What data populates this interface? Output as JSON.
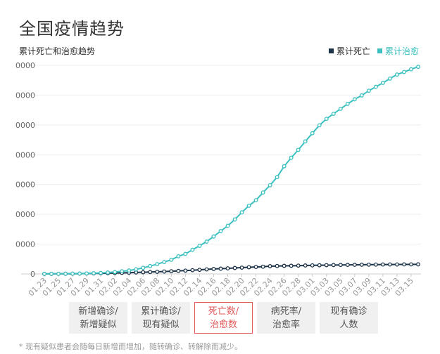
{
  "page": {
    "title": "全国疫情趋势"
  },
  "footnote": "* 现有疑似患者会随每日新增而增加，随转确诊、转解除而减少。",
  "buttons": [
    {
      "label": "新增确诊/\n新增疑似",
      "active": false
    },
    {
      "label": "累计确诊/\n现有疑似",
      "active": false
    },
    {
      "label": "死亡数/\n治愈数",
      "active": true
    },
    {
      "label": "病死率/\n治愈率",
      "active": false
    },
    {
      "label": "现有确诊\n人数",
      "active": false
    }
  ],
  "colors": {
    "deaths": "#1d3347",
    "cured": "#3cc0c0",
    "grid": "#eeeeee",
    "axis": "#cccccc",
    "tick_text": "#999999"
  },
  "chart_data": {
    "type": "line",
    "title": "累计死亡和治愈趋势",
    "legend_position": "top-right",
    "grid": true,
    "ytick_labels": [
      "0",
      "0000",
      "0000",
      "0000",
      "0000",
      "0000",
      "0000",
      "0000"
    ],
    "ylim": [
      0,
      70000
    ],
    "x": [
      "01.23",
      "01.24",
      "01.25",
      "01.26",
      "01.27",
      "01.28",
      "01.29",
      "01.30",
      "01.31",
      "02.01",
      "02.02",
      "02.03",
      "02.04",
      "02.05",
      "02.06",
      "02.07",
      "02.08",
      "02.09",
      "02.10",
      "02.11",
      "02.12",
      "02.13",
      "02.14",
      "02.15",
      "02.16",
      "02.17",
      "02.18",
      "02.19",
      "02.20",
      "02.21",
      "02.22",
      "02.23",
      "02.24",
      "02.25",
      "02.26",
      "02.27",
      "02.28",
      "02.29",
      "03.01",
      "03.02",
      "03.03",
      "03.04",
      "03.05",
      "03.06",
      "03.07",
      "03.08",
      "03.09",
      "03.10",
      "03.11",
      "03.12",
      "03.13",
      "03.14",
      "03.15",
      "03.16"
    ],
    "xtick_labels": [
      "01.23",
      "01.25",
      "01.27",
      "01.29",
      "01.31",
      "02.02",
      "02.04",
      "02.06",
      "02.08",
      "02.10",
      "02.12",
      "02.14",
      "02.16",
      "02.18",
      "02.20",
      "02.22",
      "02.24",
      "02.26",
      "02.28",
      "03.01",
      "03.03",
      "03.05",
      "03.07",
      "03.09",
      "03.11",
      "03.13",
      "03.15"
    ],
    "series": [
      {
        "name": "累计死亡",
        "color": "#1d3347",
        "values": [
          17,
          25,
          41,
          56,
          80,
          106,
          132,
          170,
          213,
          259,
          304,
          361,
          425,
          490,
          563,
          636,
          722,
          811,
          908,
          1016,
          1113,
          1259,
          1380,
          1523,
          1665,
          1770,
          1868,
          2004,
          2118,
          2236,
          2345,
          2442,
          2592,
          2663,
          2715,
          2744,
          2788,
          2835,
          2870,
          2912,
          2943,
          2981,
          3012,
          3042,
          3070,
          3097,
          3119,
          3136,
          3158,
          3169,
          3176,
          3189,
          3199,
          3213
        ]
      },
      {
        "name": "累计治愈",
        "color": "#3cc0c0",
        "values": [
          34,
          38,
          51,
          60,
          103,
          124,
          171,
          243,
          328,
          475,
          632,
          892,
          1153,
          1540,
          2050,
          2649,
          3281,
          3996,
          4740,
          5911,
          6723,
          8096,
          9419,
          10844,
          12552,
          14376,
          16155,
          18264,
          20659,
          22888,
          24734,
          27323,
          29745,
          32495,
          36117,
          39002,
          41625,
          44462,
          47204,
          49856,
          52045,
          53726,
          55404,
          57065,
          58600,
          59897,
          61475,
          62793,
          64111,
          65541,
          66911,
          67749,
          68679,
          69500
        ]
      }
    ]
  }
}
